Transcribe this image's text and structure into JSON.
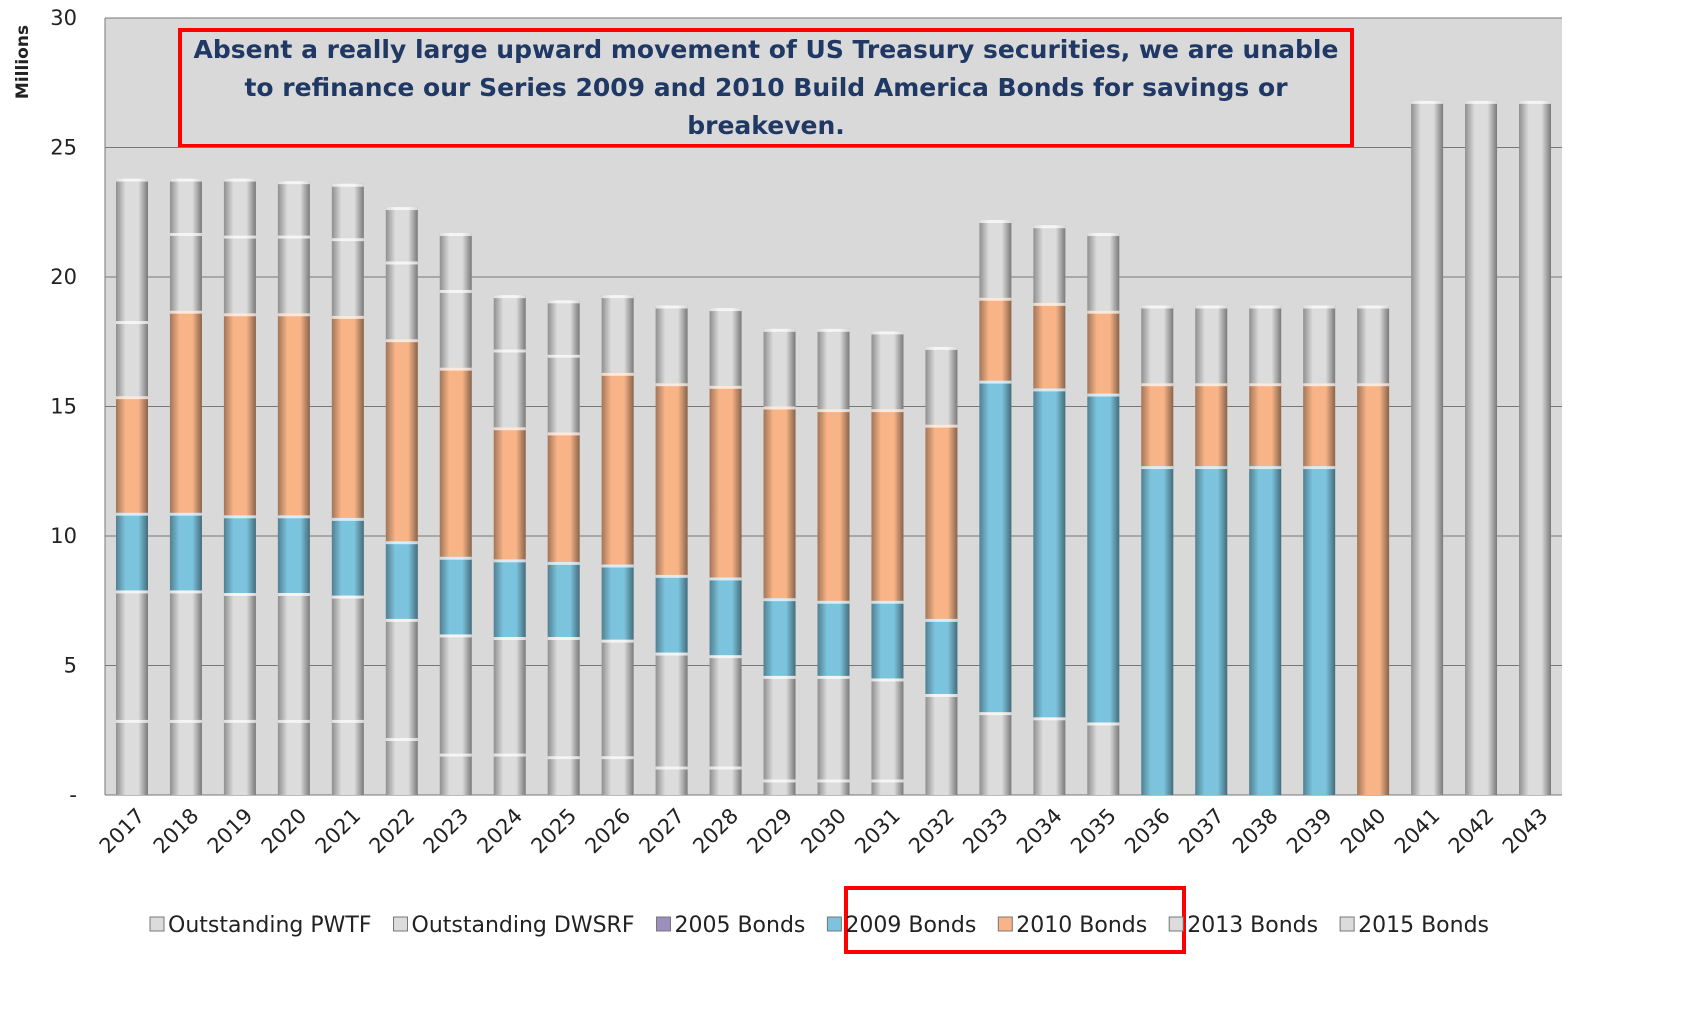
{
  "chart_data": {
    "type": "stacked_bar",
    "annotation": "Absent a really large upward movement of US Treasury securities, we are unable to refinance our Series 2009 and 2010 Build America Bonds for savings or breakeven.",
    "ylabel": "Millions",
    "categories": [
      "2017",
      "2018",
      "2019",
      "2020",
      "2021",
      "2022",
      "2023",
      "2024",
      "2025",
      "2026",
      "2027",
      "2028",
      "2029",
      "2030",
      "2031",
      "2032",
      "2033",
      "2034",
      "2035",
      "2036",
      "2037",
      "2038",
      "2039",
      "2040",
      "2041",
      "2042",
      "2043"
    ],
    "series": [
      {
        "name": "Outstanding PWTF",
        "color": "#dcdcdc",
        "values": [
          2.9,
          2.9,
          2.9,
          2.9,
          2.9,
          2.2,
          1.6,
          1.6,
          1.5,
          1.5,
          1.1,
          1.1,
          0.6,
          0.6,
          0.6,
          0,
          0,
          0,
          0,
          0,
          0,
          0,
          0,
          0,
          0,
          0,
          0
        ]
      },
      {
        "name": "Outstanding DWSRF",
        "color": "#dcdcdc",
        "values": [
          5.0,
          5.0,
          4.9,
          4.9,
          4.8,
          4.6,
          4.6,
          4.5,
          4.6,
          4.5,
          4.4,
          4.3,
          4.0,
          4.0,
          3.9,
          3.9,
          3.2,
          3.0,
          2.8,
          0,
          0,
          0,
          0,
          0,
          0,
          0,
          0
        ]
      },
      {
        "name": "2005 Bonds",
        "color": "#9b8fc0",
        "values": [
          0,
          0,
          0,
          0,
          0,
          0,
          0,
          0,
          0,
          0,
          0,
          0,
          0,
          0,
          0,
          0,
          0,
          0,
          0,
          0,
          0,
          0,
          0,
          0,
          0,
          0,
          0
        ]
      },
      {
        "name": "2009 Bonds",
        "color": "#7cc4de",
        "values": [
          3.0,
          3.0,
          3.0,
          3.0,
          3.0,
          3.0,
          3.0,
          3.0,
          2.9,
          2.9,
          3.0,
          3.0,
          3.0,
          2.9,
          3.0,
          2.9,
          12.8,
          12.7,
          12.7,
          12.7,
          12.7,
          12.7,
          12.7,
          0,
          0,
          0,
          0
        ]
      },
      {
        "name": "2010 Bonds",
        "color": "#f8b487",
        "values": [
          4.5,
          7.8,
          7.8,
          7.8,
          7.8,
          7.8,
          7.3,
          5.1,
          5.0,
          7.4,
          7.4,
          7.4,
          7.4,
          7.4,
          7.4,
          7.5,
          3.2,
          3.3,
          3.2,
          3.2,
          3.2,
          3.2,
          3.2,
          15.9,
          0,
          0,
          0
        ]
      },
      {
        "name": "2013 Bonds",
        "color": "#dcdcdc",
        "values": [
          2.9,
          3.0,
          3.0,
          3.0,
          3.0,
          3.0,
          3.0,
          3.0,
          3.0,
          3.0,
          3.0,
          3.0,
          3.0,
          3.1,
          3.0,
          3.0,
          3.0,
          3.0,
          3.0,
          3.0,
          3.0,
          3.0,
          3.0,
          3.0,
          26.8,
          26.8,
          26.8
        ]
      },
      {
        "name": "2015 Bonds",
        "color": "#dcdcdc",
        "values": [
          5.5,
          2.1,
          2.2,
          2.1,
          2.1,
          2.1,
          2.2,
          2.1,
          2.1,
          0,
          0,
          0,
          0,
          0,
          0,
          0,
          0,
          0,
          0,
          0,
          0,
          0,
          0,
          0,
          0,
          0,
          0
        ]
      }
    ],
    "ylim": [
      0,
      30
    ],
    "yticks": [
      {
        "value": 0,
        "label": "-"
      },
      5,
      10,
      15,
      20,
      25,
      30
    ],
    "grid": true
  }
}
